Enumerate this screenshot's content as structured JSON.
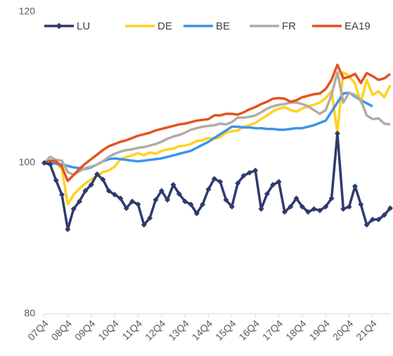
{
  "chart_data": {
    "type": "line",
    "categories": [
      "07Q4",
      null,
      null,
      null,
      "08Q4",
      null,
      null,
      null,
      "09Q4",
      null,
      null,
      null,
      "10Q4",
      null,
      null,
      null,
      "11Q4",
      null,
      null,
      null,
      "12Q4",
      null,
      null,
      null,
      "13Q4",
      null,
      null,
      null,
      "14Q4",
      null,
      null,
      null,
      "15Q4",
      null,
      null,
      null,
      "16Q4",
      null,
      null,
      null,
      "17Q4",
      null,
      null,
      null,
      "18Q4",
      null,
      null,
      null,
      "19Q4",
      null,
      null,
      null,
      "20Q4",
      null,
      null,
      null,
      "21Q4",
      null,
      null,
      null
    ],
    "ylim": [
      80,
      120
    ],
    "yticks": [
      80,
      100,
      120
    ],
    "legend": "top",
    "series": [
      {
        "name": "LU",
        "color": "#2e3a6e",
        "marker": "diamond",
        "values": [
          100,
          99.8,
          97.7,
          95.8,
          91.2,
          93.9,
          94.9,
          96.3,
          97.1,
          98.5,
          97.8,
          96.3,
          95.8,
          95.3,
          94.0,
          94.9,
          94.5,
          91.8,
          92.7,
          95.1,
          96.3,
          95.1,
          97.1,
          95.9,
          94.9,
          94.5,
          93.3,
          94.5,
          96.5,
          97.9,
          97.5,
          95.1,
          94.2,
          97.3,
          98.3,
          98.7,
          99.0,
          93.9,
          95.9,
          97.1,
          97.5,
          93.5,
          94.2,
          95.3,
          94.2,
          93.5,
          93.9,
          93.7,
          94.2,
          95.3,
          103.9,
          93.9,
          94.2,
          96.9,
          94.5,
          91.8,
          92.5,
          92.5,
          93.1,
          94.0
        ]
      },
      {
        "name": "DE",
        "color": "#ffd21f",
        "values": [
          100,
          100.3,
          100,
          99.2,
          94.5,
          95.8,
          96.6,
          97.3,
          97.8,
          98.3,
          98.8,
          99,
          99.5,
          100.5,
          100.8,
          101,
          101.3,
          101,
          101.4,
          101.2,
          101.6,
          101.8,
          101.9,
          102.2,
          102.3,
          102.5,
          102.9,
          103,
          103.3,
          103.2,
          103.4,
          104,
          104.2,
          104.3,
          104.8,
          105,
          105.3,
          105.8,
          106.3,
          106.8,
          107.2,
          107.4,
          107,
          106.8,
          107.2,
          107.5,
          107.7,
          108,
          108.6,
          109.5,
          104,
          112,
          111.5,
          110.5,
          108,
          111,
          109,
          109.5,
          108.7,
          110.3
        ]
      },
      {
        "name": "BE",
        "color": "#3b95e8",
        "values": [
          100,
          100,
          99.9,
          99.8,
          99.6,
          99.4,
          99.3,
          99.2,
          99.4,
          99.8,
          100.2,
          100.5,
          100.6,
          100.5,
          100.4,
          100.3,
          100.2,
          100.3,
          100.4,
          100.5,
          100.6,
          100.8,
          101,
          101.2,
          101.4,
          101.6,
          102,
          102.4,
          102.8,
          103.3,
          103.8,
          104.3,
          104.8,
          104.8,
          104.7,
          104.7,
          104.6,
          104.6,
          104.5,
          104.5,
          104.4,
          104.4,
          104.5,
          104.6,
          104.6,
          104.8,
          105,
          105.3,
          105.6,
          106.8,
          108,
          109.2,
          109.3,
          108.8,
          108.3,
          107.9,
          107.5,
          null,
          null,
          null
        ]
      },
      {
        "name": "FR",
        "color": "#b3aba3",
        "values": [
          100,
          100.8,
          100.4,
          100.3,
          98.8,
          98.4,
          98.9,
          99.3,
          99.5,
          99.8,
          100.2,
          100.8,
          101.2,
          101.5,
          101.7,
          101.8,
          102,
          102.1,
          102.3,
          102.5,
          102.8,
          103.2,
          103.5,
          103.7,
          104,
          104.4,
          104.6,
          104.8,
          104.9,
          105,
          105.2,
          105.1,
          105.4,
          106,
          106,
          106.1,
          106.3,
          106.7,
          107.2,
          107.5,
          107.7,
          107.8,
          108,
          108,
          107.8,
          107.5,
          107,
          106.5,
          107,
          109,
          112,
          108,
          109.3,
          109,
          108.3,
          106.3,
          105.8,
          105.9,
          105.2,
          105.1
        ]
      },
      {
        "name": "EA19",
        "color": "#e2541f",
        "values": [
          100,
          100.3,
          100.2,
          99.5,
          97.6,
          98.4,
          99.2,
          99.9,
          100.5,
          101.1,
          101.7,
          102.2,
          102.5,
          102.8,
          103,
          103.3,
          103.6,
          103.8,
          104,
          104.3,
          104.5,
          104.7,
          104.9,
          105.1,
          105.2,
          105.4,
          105.6,
          105.7,
          105.8,
          106.3,
          106.3,
          106.5,
          106.5,
          106.4,
          106.7,
          107.1,
          107.4,
          107.8,
          108.1,
          108.5,
          108.6,
          108.5,
          108.1,
          108.3,
          108.7,
          108.9,
          109.1,
          109.2,
          109.8,
          111,
          113,
          111.2,
          111.4,
          111.8,
          110.6,
          111.9,
          111.5,
          111,
          111.2,
          111.8
        ]
      }
    ]
  }
}
